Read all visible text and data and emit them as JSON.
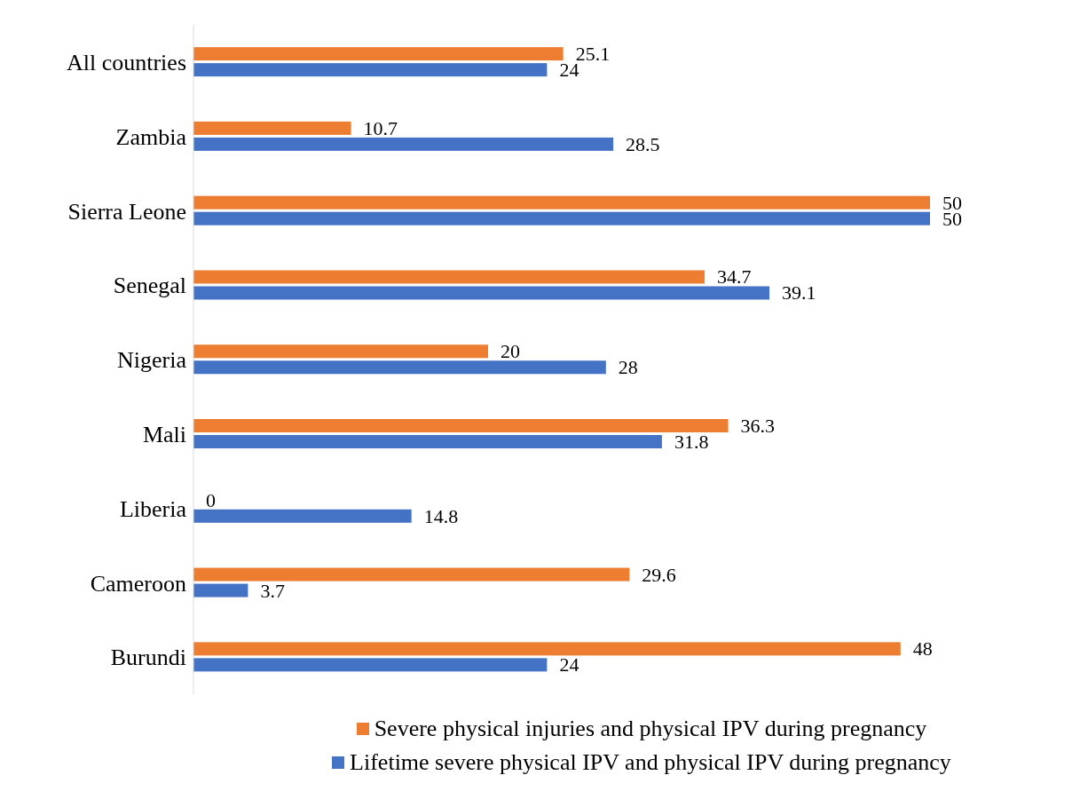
{
  "chart_data": {
    "type": "bar",
    "orientation": "horizontal",
    "categories": [
      "All countries",
      "Zambia",
      "Sierra Leone",
      "Senegal",
      "Nigeria",
      "Mali",
      "Liberia",
      "Cameroon",
      "Burundi"
    ],
    "series": [
      {
        "name": "Severe physical injuries and physical IPV during pregnancy",
        "color": "#ed7d31",
        "values": [
          25.1,
          10.7,
          50,
          34.7,
          20,
          36.3,
          0,
          29.6,
          48
        ]
      },
      {
        "name": "Lifetime severe physical IPV and physical IPV during pregnancy",
        "color": "#4472c4",
        "values": [
          24,
          28.5,
          50,
          39.1,
          28,
          31.8,
          14.8,
          3.7,
          24
        ]
      }
    ],
    "data_labels": true,
    "legend": "bottom",
    "grid": false
  }
}
